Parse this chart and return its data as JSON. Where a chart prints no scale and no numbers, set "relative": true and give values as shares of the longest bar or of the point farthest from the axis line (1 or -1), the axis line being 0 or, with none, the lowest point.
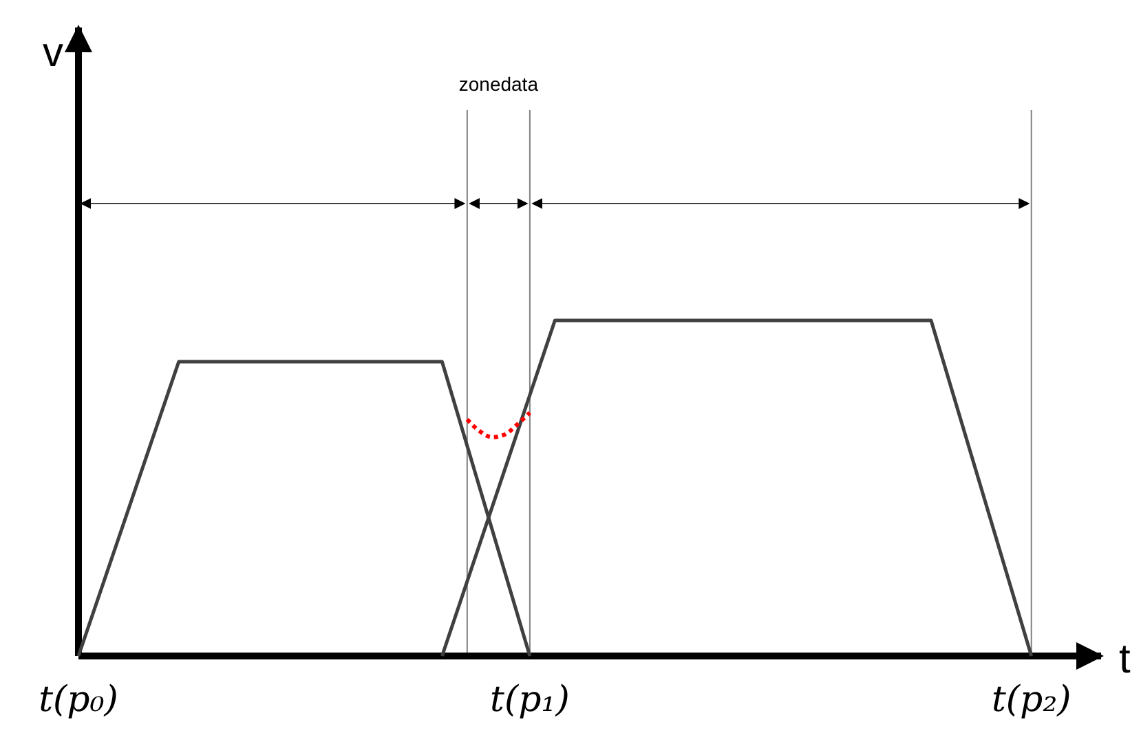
{
  "chart_data": {
    "type": "line",
    "relative": true,
    "xlabel": "t",
    "categories": [
      "t(p₀)",
      null,
      null,
      null,
      null,
      null,
      null,
      null,
      null,
      null,
      null,
      null,
      null,
      null,
      null,
      null,
      null,
      null,
      null,
      null,
      null,
      null,
      null,
      null,
      null,
      null,
      null,
      null,
      null,
      null,
      null,
      null,
      null,
      null,
      null,
      null,
      "t(p₁)",
      null,
      null,
      null,
      null,
      null,
      null,
      null,
      null,
      null,
      null,
      null,
      null,
      null,
      null,
      null,
      null,
      null,
      null,
      null,
      null,
      null,
      null,
      null,
      null,
      null,
      null,
      null,
      null,
      null,
      null,
      null,
      null,
      null,
      null,
      null,
      null,
      null,
      null,
      null,
      "t(p₂)",
      null,
      null,
      null,
      null,
      null
    ],
    "tick_labels": "x",
    "series": [
      {
        "color": "#404040",
        "values": [
          0,
          null,
          null,
          null,
          null,
          null,
          null,
          null,
          0.877,
          null,
          null,
          null,
          null,
          null,
          null,
          null,
          null,
          null,
          null,
          null,
          null,
          null,
          null,
          null,
          null,
          null,
          null,
          null,
          null,
          0.877,
          null,
          null,
          null,
          null,
          null,
          null,
          0,
          null,
          null,
          null,
          null,
          null,
          null,
          null,
          null,
          null,
          null,
          null,
          null,
          null,
          null,
          null,
          null,
          null,
          null,
          null,
          null,
          null,
          null,
          null,
          null,
          null,
          null,
          null,
          null,
          null,
          null,
          null,
          null,
          null,
          null,
          null,
          null,
          null,
          null,
          null,
          null,
          null,
          null,
          null,
          null,
          null
        ]
      },
      {
        "color": "#404040",
        "values": [
          null,
          null,
          null,
          null,
          null,
          null,
          null,
          null,
          null,
          null,
          null,
          null,
          null,
          null,
          null,
          null,
          null,
          null,
          null,
          null,
          null,
          null,
          null,
          null,
          null,
          null,
          null,
          null,
          null,
          0,
          null,
          null,
          null,
          null,
          null,
          null,
          null,
          null,
          1,
          null,
          null,
          null,
          null,
          null,
          null,
          null,
          null,
          null,
          null,
          null,
          null,
          null,
          null,
          null,
          null,
          null,
          null,
          null,
          null,
          null,
          null,
          null,
          null,
          null,
          null,
          null,
          null,
          null,
          1,
          null,
          null,
          null,
          null,
          null,
          null,
          null,
          0,
          null,
          null,
          null,
          null,
          null
        ]
      },
      {
        "color": "#ff0000",
        "line_style": "dotted",
        "values": [
          null,
          null,
          null,
          null,
          null,
          null,
          null,
          null,
          null,
          null,
          null,
          null,
          null,
          null,
          null,
          null,
          null,
          null,
          null,
          null,
          null,
          null,
          null,
          null,
          null,
          null,
          null,
          null,
          null,
          null,
          null,
          0.705,
          0.67,
          0.652,
          0.66,
          0.69,
          0.725,
          null,
          null,
          null,
          null,
          null,
          null,
          null,
          null,
          null,
          null,
          null,
          null,
          null,
          null,
          null,
          null,
          null,
          null,
          null,
          null,
          null,
          null,
          null,
          null,
          null,
          null,
          null,
          null,
          null,
          null,
          null,
          null,
          null,
          null,
          null,
          null,
          null,
          null,
          null,
          null,
          null,
          null,
          null,
          null,
          null
        ]
      }
    ],
    "grid": "x",
    "annotations": [
      "zonedata",
      "v"
    ]
  }
}
